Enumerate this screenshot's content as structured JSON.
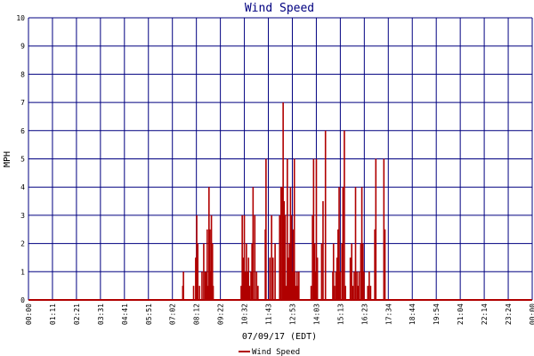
{
  "chart_data": {
    "type": "bar",
    "title": "Wind Speed",
    "xlabel": "07/09/17 (EDT)",
    "ylabel": "MPH",
    "ylim": [
      0,
      10
    ],
    "yticks": [
      "0",
      "1",
      "2",
      "3",
      "4",
      "5",
      "6",
      "7",
      "8",
      "9",
      "10"
    ],
    "xticks": [
      "00:00",
      "01:11",
      "02:21",
      "03:31",
      "04:41",
      "05:51",
      "07:02",
      "08:12",
      "09:22",
      "10:32",
      "11:43",
      "12:53",
      "14:03",
      "15:13",
      "16:23",
      "17:34",
      "18:44",
      "19:54",
      "21:04",
      "22:14",
      "23:24",
      "00:00"
    ],
    "x_range_minutes": [
      0,
      1440
    ],
    "grid": true,
    "legend_position": "bottom-left",
    "colors": {
      "series": "#b00000",
      "grid": "#000080",
      "title": "#000080",
      "text": "#000000"
    },
    "series": [
      {
        "name": "Wind Speed",
        "points": [
          [
            441,
            0.5
          ],
          [
            443,
            1.0
          ],
          [
            472,
            0.5
          ],
          [
            478,
            1.5
          ],
          [
            481,
            3.0
          ],
          [
            484,
            2.0
          ],
          [
            489,
            0.5
          ],
          [
            496,
            1.0
          ],
          [
            501,
            2.0
          ],
          [
            505,
            1.0
          ],
          [
            508,
            1.0
          ],
          [
            511,
            2.5
          ],
          [
            513,
            0.5
          ],
          [
            516,
            4.0
          ],
          [
            519,
            2.5
          ],
          [
            521,
            1.0
          ],
          [
            523,
            3.0
          ],
          [
            526,
            2.0
          ],
          [
            528,
            0.5
          ],
          [
            608,
            0.5
          ],
          [
            611,
            3.0
          ],
          [
            614,
            1.5
          ],
          [
            617,
            3.0
          ],
          [
            620,
            1.0
          ],
          [
            623,
            2.0
          ],
          [
            626,
            1.0
          ],
          [
            629,
            1.5
          ],
          [
            632,
            0.5
          ],
          [
            636,
            1.0
          ],
          [
            639,
            2.0
          ],
          [
            642,
            4.0
          ],
          [
            647,
            3.0
          ],
          [
            652,
            1.0
          ],
          [
            656,
            0.5
          ],
          [
            677,
            2.5
          ],
          [
            679,
            5.0
          ],
          [
            690,
            1.5
          ],
          [
            695,
            3.0
          ],
          [
            699,
            1.5
          ],
          [
            705,
            2.0
          ],
          [
            718,
            3.0
          ],
          [
            722,
            4.0
          ],
          [
            726,
            4.0
          ],
          [
            728,
            7.0
          ],
          [
            731,
            3.5
          ],
          [
            734,
            3.0
          ],
          [
            737,
            0.5
          ],
          [
            740,
            5.0
          ],
          [
            743,
            1.5
          ],
          [
            746,
            2.0
          ],
          [
            749,
            4.0
          ],
          [
            752,
            3.0
          ],
          [
            755,
            1.0
          ],
          [
            757,
            2.5
          ],
          [
            760,
            5.0
          ],
          [
            762,
            1.0
          ],
          [
            765,
            0.5
          ],
          [
            768,
            1.0
          ],
          [
            770,
            0.5
          ],
          [
            773,
            1.0
          ],
          [
            808,
            0.5
          ],
          [
            812,
            3.0
          ],
          [
            815,
            5.0
          ],
          [
            818,
            2.0
          ],
          [
            821,
            1.0
          ],
          [
            823,
            5.0
          ],
          [
            826,
            1.5
          ],
          [
            838,
            2.0
          ],
          [
            842,
            3.5
          ],
          [
            849,
            6.0
          ],
          [
            870,
            1.0
          ],
          [
            872,
            2.0
          ],
          [
            875,
            0.5
          ],
          [
            879,
            1.0
          ],
          [
            882,
            1.5
          ],
          [
            885,
            2.5
          ],
          [
            888,
            4.0
          ],
          [
            891,
            1.0
          ],
          [
            896,
            2.0
          ],
          [
            899,
            4.0
          ],
          [
            903,
            6.0
          ],
          [
            906,
            0.5
          ],
          [
            920,
            1.5
          ],
          [
            924,
            2.0
          ],
          [
            927,
            0.5
          ],
          [
            931,
            1.0
          ],
          [
            935,
            4.0
          ],
          [
            939,
            1.0
          ],
          [
            942,
            0.5
          ],
          [
            945,
            1.0
          ],
          [
            950,
            2.0
          ],
          [
            953,
            4.0
          ],
          [
            956,
            2.0
          ],
          [
            959,
            1.0
          ],
          [
            970,
            0.5
          ],
          [
            974,
            1.0
          ],
          [
            978,
            0.5
          ],
          [
            990,
            2.5
          ],
          [
            993,
            5.0
          ],
          [
            1016,
            5.0
          ],
          [
            1019,
            2.5
          ]
        ]
      }
    ]
  }
}
